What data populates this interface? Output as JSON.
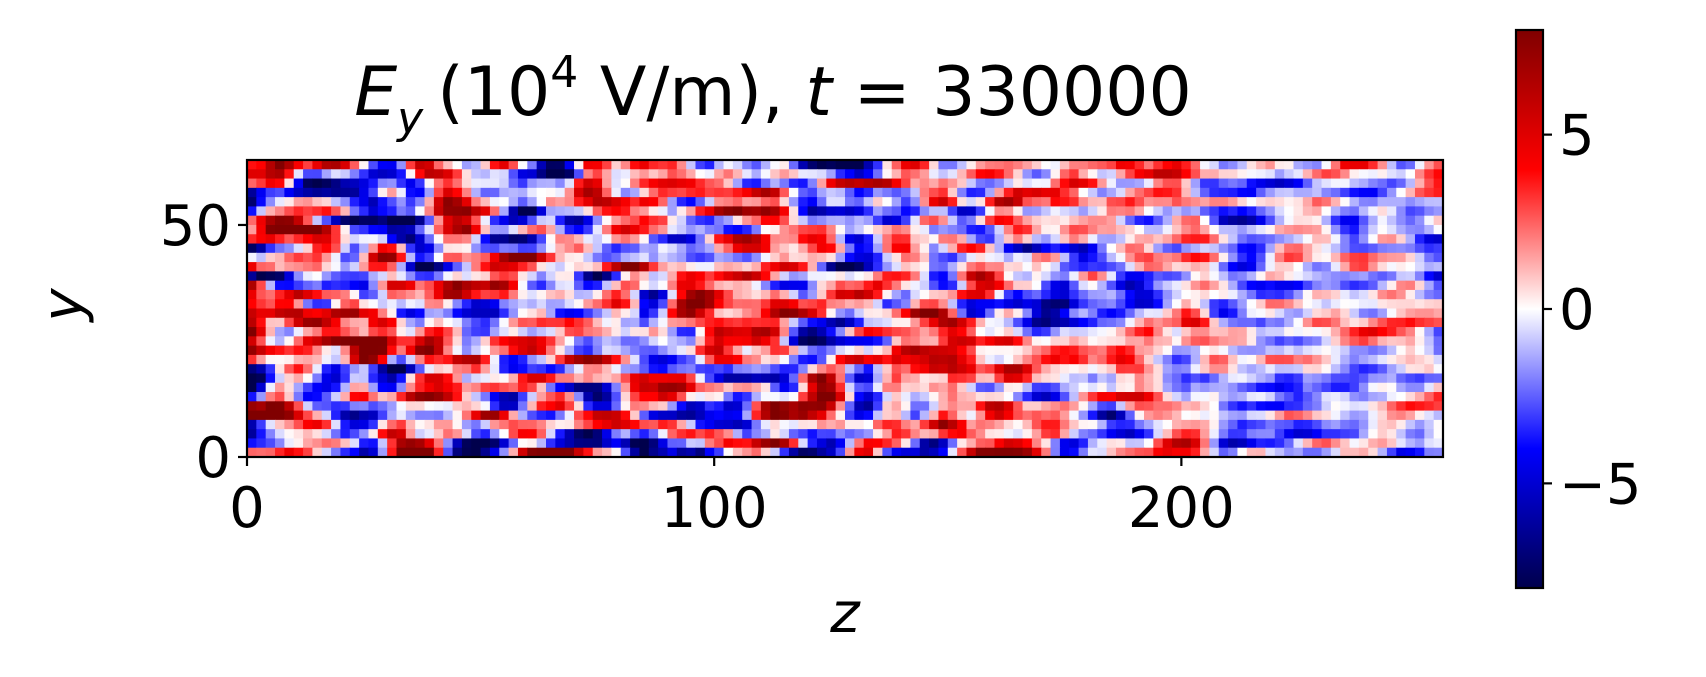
{
  "chart_data": {
    "type": "heatmap",
    "title": {
      "field_symbol": "E",
      "field_subscript": "y",
      "unit_prefix": "(10",
      "unit_exponent": "4",
      "unit_suffix": " V/m), ",
      "time_symbol": "t",
      "equals": " = ",
      "time_value": "330000"
    },
    "xlabel": "z",
    "ylabel": "y",
    "xlim": [
      0,
      256
    ],
    "ylim": [
      0,
      64
    ],
    "xticks": [
      0,
      100,
      200
    ],
    "yticks": [
      0,
      50
    ],
    "xtick_labels": [
      "0",
      "100",
      "200"
    ],
    "ytick_labels": [
      "0",
      "50"
    ],
    "colorbar": {
      "colormap": "seismic",
      "vmin": -8,
      "vmax": 8,
      "ticks": [
        -5,
        0,
        5
      ],
      "tick_labels": [
        "−5",
        "0",
        "5"
      ]
    },
    "grid": false,
    "colors": {
      "negative_extreme": "#00004c",
      "negative": "#0000ff",
      "zero": "#ffffff",
      "positive": "#ff0000",
      "positive_extreme": "#800000"
    },
    "field_description": "noisy field; higher amplitude for z < 140, weaker toward large z"
  }
}
